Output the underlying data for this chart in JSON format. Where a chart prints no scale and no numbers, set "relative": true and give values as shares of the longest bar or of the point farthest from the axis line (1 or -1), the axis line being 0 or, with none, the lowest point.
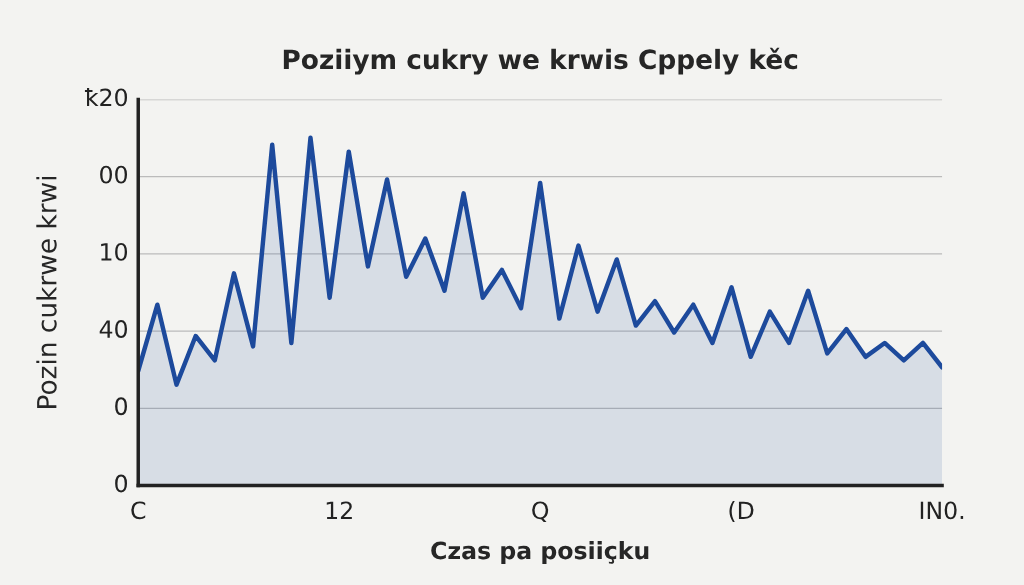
{
  "chart_data": {
    "type": "area",
    "title": "Poziiym cukry we krwis Cppely kěc",
    "xlabel": "Czas pa posiiçku",
    "ylabel": "Pozin cukrwe krwi",
    "relative": true,
    "categories": [
      null,
      null,
      null,
      null,
      null,
      null,
      null,
      null,
      null,
      null,
      null,
      null,
      null,
      null,
      null,
      null,
      null,
      null,
      null,
      null,
      null,
      null,
      null,
      null,
      null,
      null,
      null,
      null,
      null,
      null,
      null,
      null,
      null,
      null,
      null,
      null,
      null,
      null,
      null,
      null,
      null,
      null,
      null
    ],
    "annotations": [
      "0",
      "0",
      "40",
      "10",
      "00",
      "ꝁ20",
      "C",
      "12",
      "Q",
      "(D",
      "IN0."
    ],
    "grid": "y",
    "legend": false,
    "series": [
      {
        "color": "#1d4a9c",
        "values": [
          0.33,
          0.52,
          0.29,
          0.43,
          0.36,
          0.61,
          0.4,
          0.98,
          0.41,
          1,
          0.54,
          0.96,
          0.63,
          0.88,
          0.6,
          0.71,
          0.56,
          0.84,
          0.54,
          0.62,
          0.51,
          0.87,
          0.48,
          0.69,
          0.5,
          0.65,
          0.46,
          0.53,
          0.44,
          0.52,
          0.41,
          0.57,
          0.37,
          0.5,
          0.41,
          0.56,
          0.38,
          0.45,
          0.37,
          0.41,
          0.36,
          0.41,
          0.34
        ]
      }
    ]
  }
}
